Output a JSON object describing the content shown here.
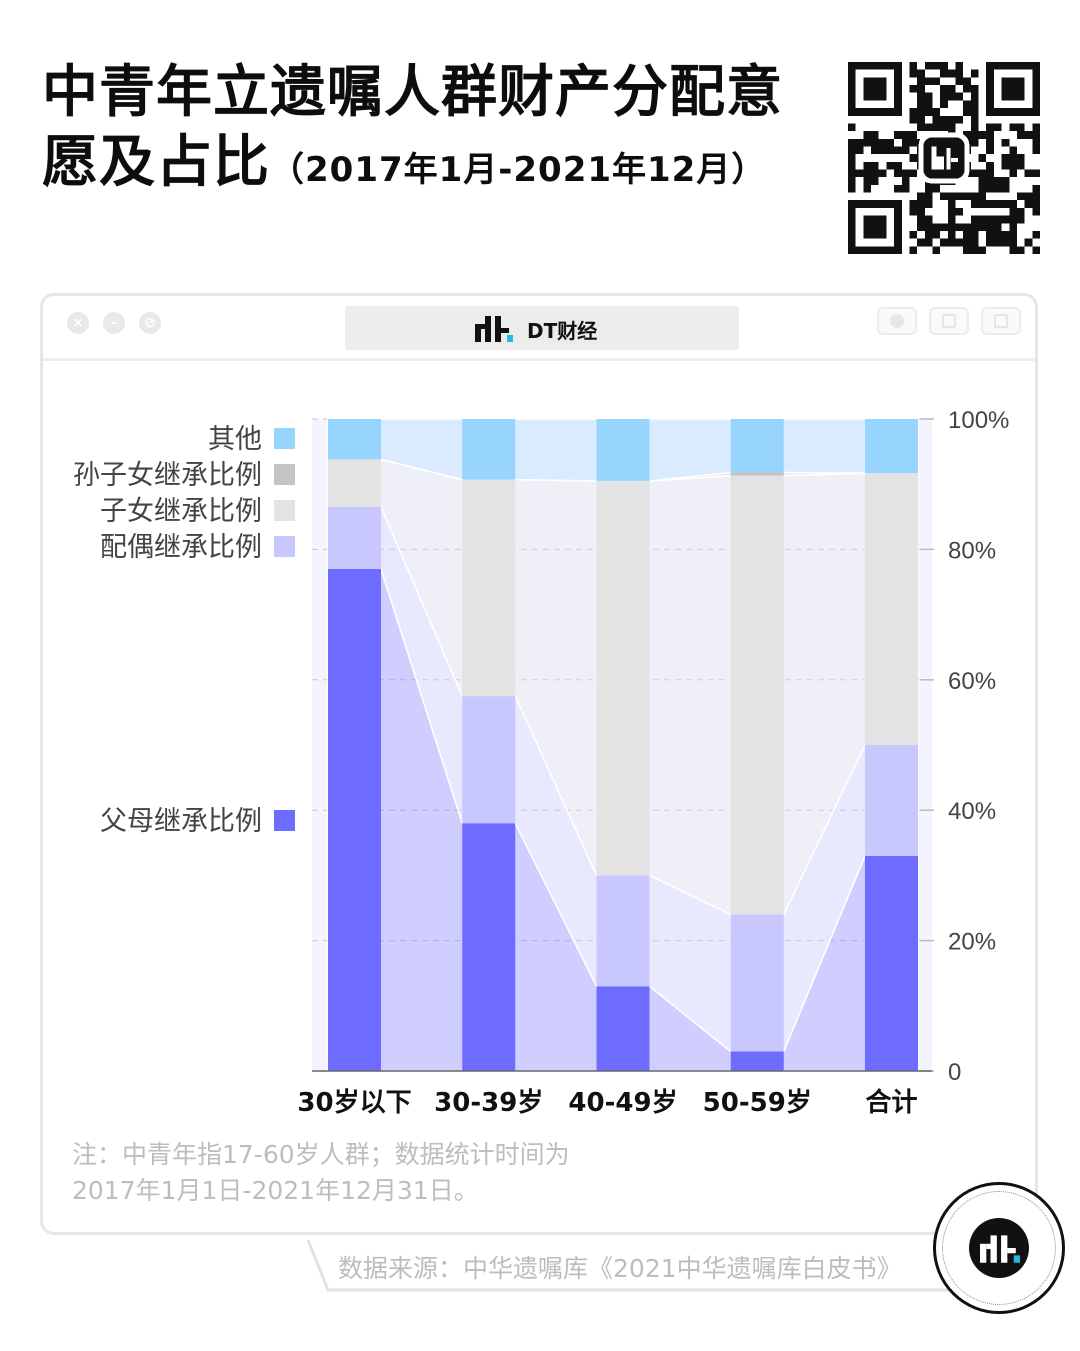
{
  "title": {
    "main": "中青年立遗嘱人群财产分配意愿及占比",
    "sub": "（2017年1月-2021年12月）"
  },
  "window": {
    "address_label": "DT财经"
  },
  "chart_data": {
    "type": "bar",
    "stacked": true,
    "categories": [
      "30岁以下",
      "30-39岁",
      "40-49岁",
      "50-59岁",
      "合计"
    ],
    "series": [
      {
        "name": "父母继承比例",
        "color": "#6e6cff",
        "values": [
          77,
          38,
          13,
          3,
          33
        ]
      },
      {
        "name": "配偶继承比例",
        "color": "#c8c8ff",
        "values": [
          9.5,
          19.5,
          17,
          21,
          17
        ]
      },
      {
        "name": "子女继承比例",
        "color": "#e3e3e3",
        "values": [
          7.3,
          33.2,
          60.5,
          67.3,
          41.7
        ]
      },
      {
        "name": "孙子女继承比例",
        "color": "#c4c4c4",
        "values": [
          0,
          0,
          0,
          0.5,
          0
        ]
      },
      {
        "name": "其他",
        "color": "#97d5ff",
        "values": [
          6.2,
          9.3,
          9.5,
          8.2,
          8.3
        ]
      }
    ],
    "y_ticks": [
      "100%",
      "80%",
      "60%",
      "40%",
      "20%",
      "0"
    ],
    "ylim": [
      0,
      100
    ],
    "grid": true,
    "legend_position": "left"
  },
  "note": {
    "line1": "注：中青年指17-60岁人群；数据统计时间为",
    "line2": "2017年1月1日-2021年12月31日。"
  },
  "source": "数据来源：中华遗嘱库《2021中华遗嘱库白皮书》"
}
